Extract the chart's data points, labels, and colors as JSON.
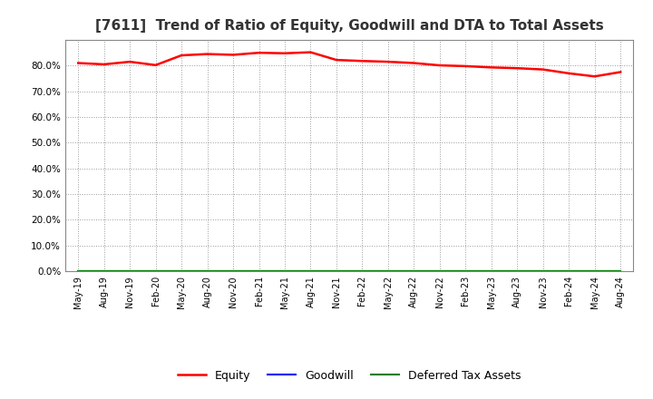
{
  "title": "[7611]  Trend of Ratio of Equity, Goodwill and DTA to Total Assets",
  "x_labels": [
    "May-19",
    "Aug-19",
    "Nov-19",
    "Feb-20",
    "May-20",
    "Aug-20",
    "Nov-20",
    "Feb-21",
    "May-21",
    "Aug-21",
    "Nov-21",
    "Feb-22",
    "May-22",
    "Aug-22",
    "Nov-22",
    "Feb-23",
    "May-23",
    "Aug-23",
    "Nov-23",
    "Feb-24",
    "May-24",
    "Aug-24"
  ],
  "equity": [
    81.0,
    80.5,
    81.5,
    80.2,
    84.0,
    84.5,
    84.2,
    85.0,
    84.8,
    85.2,
    82.2,
    81.8,
    81.5,
    81.0,
    80.1,
    79.8,
    79.3,
    79.0,
    78.5,
    77.0,
    75.8,
    77.5
  ],
  "goodwill": [
    0.0,
    0.0,
    0.0,
    0.0,
    0.0,
    0.0,
    0.0,
    0.0,
    0.0,
    0.0,
    0.0,
    0.0,
    0.0,
    0.0,
    0.0,
    0.0,
    0.0,
    0.0,
    0.0,
    0.0,
    0.0,
    0.0
  ],
  "dta": [
    0.0,
    0.0,
    0.0,
    0.0,
    0.0,
    0.0,
    0.0,
    0.0,
    0.0,
    0.0,
    0.0,
    0.0,
    0.0,
    0.0,
    0.0,
    0.0,
    0.0,
    0.0,
    0.0,
    0.0,
    0.0,
    0.0
  ],
  "equity_color": "#ff0000",
  "goodwill_color": "#0000ff",
  "dta_color": "#008000",
  "ylim": [
    0,
    90
  ],
  "yticks": [
    0,
    10,
    20,
    30,
    40,
    50,
    60,
    70,
    80
  ],
  "background_color": "#ffffff",
  "plot_bg_color": "#ffffff",
  "grid_color": "#999999",
  "title_fontsize": 11,
  "legend_entries": [
    "Equity",
    "Goodwill",
    "Deferred Tax Assets"
  ]
}
